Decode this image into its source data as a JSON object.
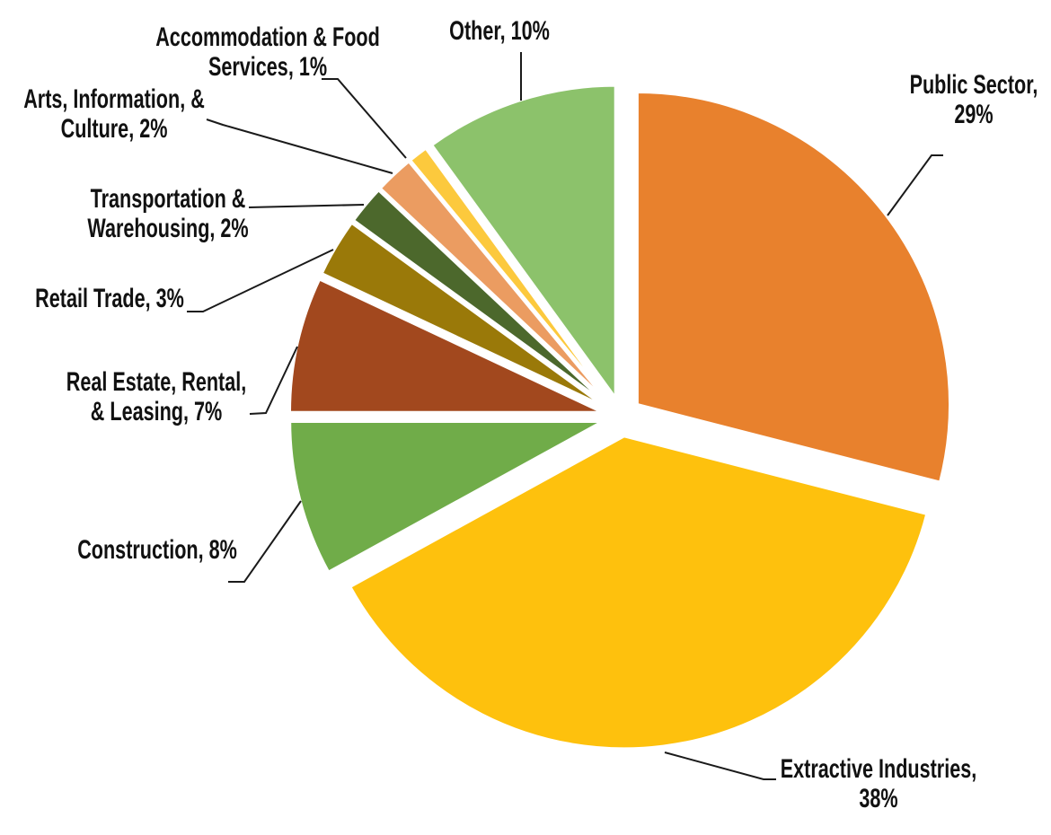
{
  "chart_data": {
    "type": "pie",
    "title": "",
    "start_angle_deg": 0,
    "direction": "clockwise",
    "total_pct": 100,
    "background": "#FFFFFF",
    "label_color": "#111111",
    "leader_line_color": "#1A1A1A",
    "slice_border_color": "#FFFFFF",
    "legend": "none",
    "slices": [
      {
        "id": "public-sector",
        "name": "Public Sector",
        "value_pct": 29,
        "color": "#E8812D",
        "label_lines": [
          "Public Sector,",
          "29%"
        ]
      },
      {
        "id": "extractive-industries",
        "name": "Extractive Industries",
        "value_pct": 38,
        "color": "#FEC10D",
        "label_lines": [
          "Extractive Industries,",
          "38%"
        ]
      },
      {
        "id": "construction",
        "name": "Construction",
        "value_pct": 8,
        "color": "#70AC49",
        "label_lines": [
          "Construction, 8%"
        ]
      },
      {
        "id": "real-estate-rental-leasing",
        "name": "Real Estate, Rental, & Leasing",
        "value_pct": 7,
        "color": "#A2481E",
        "label_lines": [
          "Real Estate, Rental,",
          "& Leasing, 7%"
        ]
      },
      {
        "id": "retail-trade",
        "name": "Retail Trade",
        "value_pct": 3,
        "color": "#9A7909",
        "label_lines": [
          "Retail Trade, 3%"
        ]
      },
      {
        "id": "transportation-warehousing",
        "name": "Transportation & Warehousing",
        "value_pct": 2,
        "color": "#4C682C",
        "label_lines": [
          "Transportation &",
          "Warehousing, 2%"
        ]
      },
      {
        "id": "arts-information-culture",
        "name": "Arts, Information, & Culture",
        "value_pct": 2,
        "color": "#EB9C61",
        "label_lines": [
          "Arts, Information, &",
          "Culture, 2%"
        ]
      },
      {
        "id": "accommodation-food-services",
        "name": "Accommodation & Food Services",
        "value_pct": 1,
        "color": "#FCC93D",
        "label_lines": [
          "Accommodation & Food",
          "Services, 1%"
        ]
      },
      {
        "id": "other",
        "name": "Other",
        "value_pct": 10,
        "color": "#8CC26B",
        "label_lines": [
          "Other, 10%"
        ]
      }
    ]
  }
}
